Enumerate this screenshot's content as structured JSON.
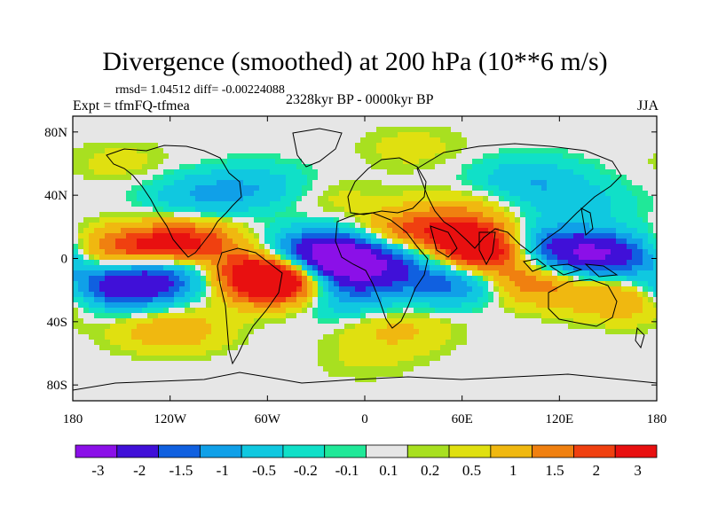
{
  "chart_data": {
    "type": "heatmap",
    "title": "Divergence (smoothed) at 200 hPa (10**6 m/s)",
    "stats": "rmsd= 1.04512 diff= -0.00224088",
    "left_subtitle": "Expt = tfmFQ-tfmea",
    "center_subtitle": "2328kyr BP - 0000kyr BP",
    "right_subtitle": "JJA",
    "x_ticks": [
      "180",
      "120W",
      "60W",
      "0",
      "60E",
      "120E",
      "180"
    ],
    "x_tick_values": [
      -180,
      -120,
      -60,
      0,
      60,
      120,
      180
    ],
    "y_ticks": [
      "80N",
      "40N",
      "0",
      "40S",
      "80S"
    ],
    "y_tick_values": [
      80,
      40,
      0,
      -40,
      -80
    ],
    "xlim": [
      -180,
      180
    ],
    "ylim": [
      -90,
      90
    ],
    "colorbar_levels": [
      "-3",
      "-2",
      "-1.5",
      "-1",
      "-0.5",
      "-0.2",
      "-0.1",
      "0.1",
      "0.2",
      "0.5",
      "1",
      "1.5",
      "2",
      "3"
    ],
    "colorbar_colors": [
      "#8b10e8",
      "#4010d8",
      "#1060e0",
      "#10a0e8",
      "#10c8e0",
      "#10e0c8",
      "#20e898",
      "#e6e6e6",
      "#a8e020",
      "#e0e010",
      "#f0b810",
      "#f08010",
      "#f04010",
      "#e81010"
    ],
    "features": [
      {
        "lon": -10,
        "lat": -5,
        "value": -3.3
      },
      {
        "lon": -25,
        "lat": 5,
        "value": -2.6
      },
      {
        "lon": -150,
        "lat": -18,
        "value": -2.6
      },
      {
        "lon": -120,
        "lat": -10,
        "value": -1.5
      },
      {
        "lon": 150,
        "lat": 2,
        "value": -2.4
      },
      {
        "lon": 120,
        "lat": 5,
        "value": -1.6
      },
      {
        "lon": 45,
        "lat": 5,
        "value": -2.4
      },
      {
        "lon": 55,
        "lat": -15,
        "value": -2.0
      },
      {
        "lon": 90,
        "lat": 12,
        "value": -1.8
      },
      {
        "lon": -20,
        "lat": -22,
        "value": -1.8
      },
      {
        "lon": -100,
        "lat": 40,
        "value": -1.0
      },
      {
        "lon": -60,
        "lat": 45,
        "value": -0.8
      },
      {
        "lon": 100,
        "lat": 50,
        "value": -0.9
      },
      {
        "lon": 130,
        "lat": 35,
        "value": -0.7
      },
      {
        "lon": 65,
        "lat": 3,
        "value": 3.4
      },
      {
        "lon": 75,
        "lat": 12,
        "value": 2.8
      },
      {
        "lon": -60,
        "lat": -10,
        "value": 3.0
      },
      {
        "lon": -45,
        "lat": -18,
        "value": 2.4
      },
      {
        "lon": -110,
        "lat": 10,
        "value": 2.1
      },
      {
        "lon": -150,
        "lat": 5,
        "value": 1.6
      },
      {
        "lon": 30,
        "lat": 15,
        "value": 2.0
      },
      {
        "lon": 100,
        "lat": -15,
        "value": 1.5
      },
      {
        "lon": 160,
        "lat": -25,
        "value": 1.1
      },
      {
        "lon": -120,
        "lat": -45,
        "value": 0.9
      },
      {
        "lon": 20,
        "lat": -45,
        "value": 0.6
      },
      {
        "lon": 60,
        "lat": 30,
        "value": 0.6
      },
      {
        "lon": -30,
        "lat": 40,
        "value": 0.4
      },
      {
        "lon": -150,
        "lat": 60,
        "value": 0.3
      },
      {
        "lon": 30,
        "lat": 70,
        "value": 0.3
      },
      {
        "lon": 0,
        "lat": -65,
        "value": 0.2
      }
    ]
  }
}
